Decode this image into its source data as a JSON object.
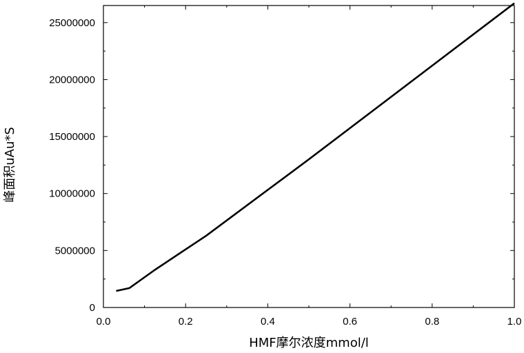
{
  "chart_data": {
    "type": "line",
    "title": "",
    "xlabel": "HMF摩尔浓度mmol/l",
    "ylabel": "峰面积uAu*S",
    "xlim": [
      0.0,
      1.0
    ],
    "ylim": [
      0,
      26500000
    ],
    "x_ticks": [
      0.0,
      0.2,
      0.4,
      0.6,
      0.8,
      1.0
    ],
    "x_tick_labels": [
      "0.0",
      "0.2",
      "0.4",
      "0.6",
      "0.8",
      "1.0"
    ],
    "y_ticks": [
      0,
      5000000,
      10000000,
      15000000,
      20000000,
      25000000
    ],
    "y_tick_labels": [
      "0",
      "5000000",
      "10000000",
      "15000000",
      "20000000",
      "25000000"
    ],
    "grid": false,
    "legend": "none",
    "series": [
      {
        "x": [
          0.031,
          0.063,
          0.125,
          0.25,
          0.5,
          1.0
        ],
        "y": [
          1450000,
          1700000,
          3300000,
          6300000,
          13000000,
          26700000
        ],
        "color": "#000000"
      }
    ]
  }
}
